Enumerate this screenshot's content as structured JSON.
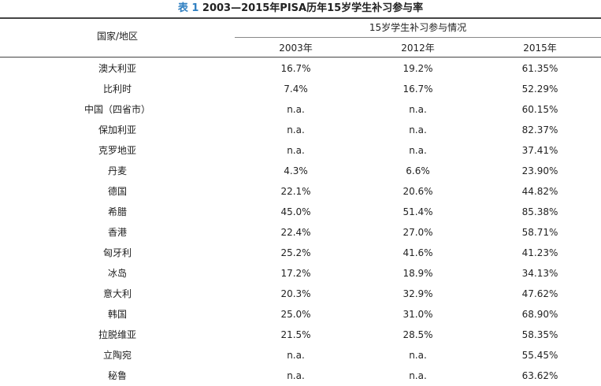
{
  "caption": {
    "label": "表 1",
    "title": "2003—2015年PISA历年15岁学生补习参与率"
  },
  "header": {
    "country_col": "国家/地区",
    "group_col": "15岁学生补习参与情况",
    "years": [
      "2003年",
      "2012年",
      "2015年"
    ]
  },
  "rows": [
    {
      "country": "澳大利亚",
      "v2003": "16.7%",
      "v2012": "19.2%",
      "v2015": "61.35%"
    },
    {
      "country": "比利时",
      "v2003": "7.4%",
      "v2012": "16.7%",
      "v2015": "52.29%"
    },
    {
      "country": "中国（四省市）",
      "v2003": "n.a.",
      "v2012": "n.a.",
      "v2015": "60.15%"
    },
    {
      "country": "保加利亚",
      "v2003": "n.a.",
      "v2012": "n.a.",
      "v2015": "82.37%"
    },
    {
      "country": "克罗地亚",
      "v2003": "n.a.",
      "v2012": "n.a.",
      "v2015": "37.41%"
    },
    {
      "country": "丹麦",
      "v2003": "4.3%",
      "v2012": "6.6%",
      "v2015": "23.90%"
    },
    {
      "country": "德国",
      "v2003": "22.1%",
      "v2012": "20.6%",
      "v2015": "44.82%"
    },
    {
      "country": "希腊",
      "v2003": "45.0%",
      "v2012": "51.4%",
      "v2015": "85.38%"
    },
    {
      "country": "香港",
      "v2003": "22.4%",
      "v2012": "27.0%",
      "v2015": "58.71%"
    },
    {
      "country": "匈牙利",
      "v2003": "25.2%",
      "v2012": "41.6%",
      "v2015": "41.23%"
    },
    {
      "country": "冰岛",
      "v2003": "17.2%",
      "v2012": "18.9%",
      "v2015": "34.13%"
    },
    {
      "country": "意大利",
      "v2003": "20.3%",
      "v2012": "32.9%",
      "v2015": "47.62%"
    },
    {
      "country": "韩国",
      "v2003": "25.0%",
      "v2012": "31.0%",
      "v2015": "68.90%"
    },
    {
      "country": "拉脱维亚",
      "v2003": "21.5%",
      "v2012": "28.5%",
      "v2015": "58.35%"
    },
    {
      "country": "立陶宛",
      "v2003": "n.a.",
      "v2012": "n.a.",
      "v2015": "55.45%"
    },
    {
      "country": "秘鲁",
      "v2003": "n.a.",
      "v2012": "n.a.",
      "v2015": "63.62%"
    }
  ],
  "colors": {
    "caption_label": "#2f7fc1",
    "text": "#222222",
    "rule": "#444444"
  }
}
